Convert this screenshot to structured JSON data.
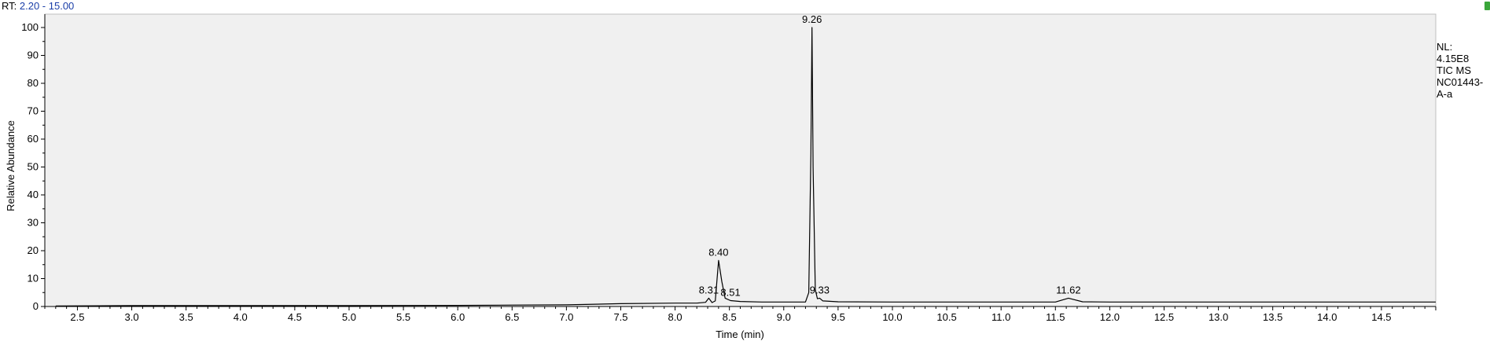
{
  "header": {
    "rt_label": "RT:",
    "rt_range": "2.20 - 15.00"
  },
  "info": {
    "nl_label": "NL:",
    "nl_value": "4.15E8",
    "scan": "TIC  MS",
    "sample_line1": "NC01443-",
    "sample_line2": "A-a"
  },
  "colors": {
    "trace": "#000000",
    "plot_bg": "#f0f0f0",
    "rt_text": "#1a3ea8"
  },
  "chart_data": {
    "type": "line",
    "xlabel": "Time (min)",
    "ylabel": "Relative Abundance",
    "xlim": [
      2.2,
      15.0
    ],
    "ylim": [
      0,
      100
    ],
    "x_ticks": [
      "2.5",
      "3.0",
      "3.5",
      "4.0",
      "4.5",
      "5.0",
      "5.5",
      "6.0",
      "6.5",
      "7.0",
      "7.5",
      "8.0",
      "8.5",
      "9.0",
      "9.5",
      "10.0",
      "10.5",
      "11.0",
      "11.5",
      "12.0",
      "12.5",
      "13.0",
      "13.5",
      "14.0",
      "14.5"
    ],
    "y_ticks": [
      "0",
      "10",
      "20",
      "30",
      "40",
      "50",
      "60",
      "70",
      "80",
      "90",
      "100"
    ],
    "series": [
      {
        "x": [
          2.3,
          3.0,
          4.0,
          5.0,
          6.0,
          6.5,
          7.0,
          7.5,
          8.0,
          8.2,
          8.28,
          8.31,
          8.34,
          8.37,
          8.4,
          8.43,
          8.46,
          8.51,
          8.6,
          8.8,
          9.0,
          9.2,
          9.23,
          9.25,
          9.26,
          9.27,
          9.29,
          9.31,
          9.33,
          9.36,
          9.5,
          10.0,
          11.0,
          11.5,
          11.62,
          11.75,
          12.0,
          13.0,
          14.0,
          15.0
        ],
        "y": [
          0.2,
          0.3,
          0.3,
          0.3,
          0.4,
          0.5,
          0.6,
          1.0,
          1.2,
          1.2,
          1.5,
          3.0,
          1.4,
          2.0,
          16.5,
          9.0,
          3.0,
          2.1,
          1.8,
          1.6,
          1.6,
          1.6,
          5.0,
          55.0,
          100.0,
          50.0,
          6.0,
          2.8,
          3.0,
          2.0,
          1.7,
          1.6,
          1.6,
          1.6,
          3.0,
          1.7,
          1.6,
          1.6,
          1.6,
          1.6
        ]
      }
    ],
    "peaks": [
      {
        "label": "8.31",
        "x": 8.31,
        "y": 3.0
      },
      {
        "label": "8.40",
        "x": 8.4,
        "y": 16.5
      },
      {
        "label": "8.51",
        "x": 8.51,
        "y": 2.1
      },
      {
        "label": "9.26",
        "x": 9.26,
        "y": 100.0
      },
      {
        "label": "9.33",
        "x": 9.33,
        "y": 3.0
      },
      {
        "label": "11.62",
        "x": 11.62,
        "y": 3.0
      }
    ]
  }
}
